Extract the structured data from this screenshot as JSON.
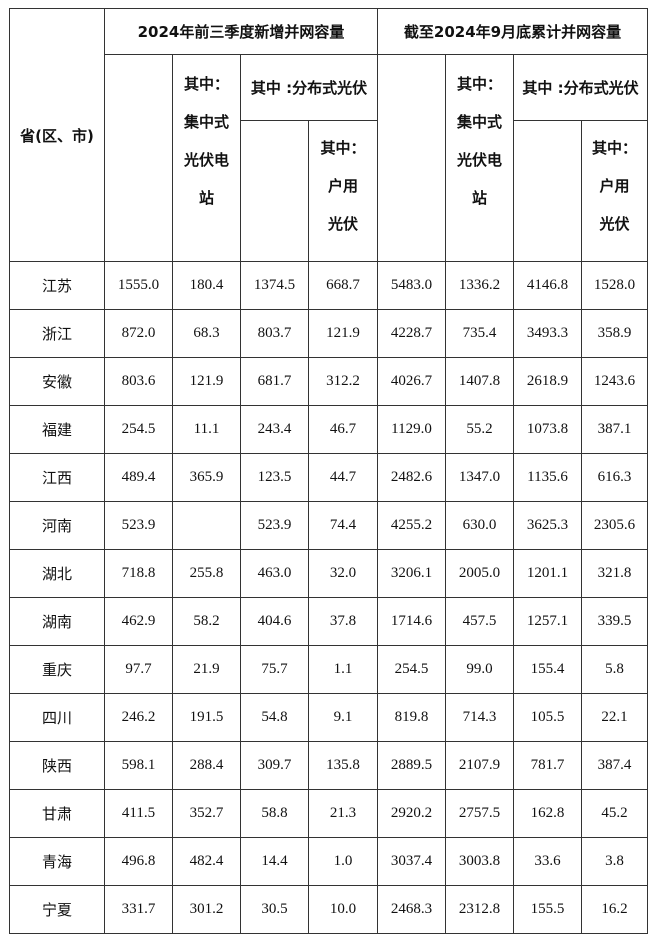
{
  "header": {
    "province": "省(区、市)",
    "group1": "2024年前三季度新增并网容量",
    "group2": "截至2024年9月底累计并网容量",
    "centralized": [
      "其中：",
      "集中式",
      "光伏电",
      "站"
    ],
    "distributed": "其中 :分布式光伏",
    "household": [
      "其中：",
      "户用",
      "光伏"
    ]
  },
  "rows": [
    {
      "province": "江苏",
      "v": [
        "1555.0",
        "180.4",
        "1374.5",
        "668.7",
        "5483.0",
        "1336.2",
        "4146.8",
        "1528.0"
      ]
    },
    {
      "province": "浙江",
      "v": [
        "872.0",
        "68.3",
        "803.7",
        "121.9",
        "4228.7",
        "735.4",
        "3493.3",
        "358.9"
      ]
    },
    {
      "province": "安徽",
      "v": [
        "803.6",
        "121.9",
        "681.7",
        "312.2",
        "4026.7",
        "1407.8",
        "2618.9",
        "1243.6"
      ]
    },
    {
      "province": "福建",
      "v": [
        "254.5",
        "11.1",
        "243.4",
        "46.7",
        "1129.0",
        "55.2",
        "1073.8",
        "387.1"
      ]
    },
    {
      "province": "江西",
      "v": [
        "489.4",
        "365.9",
        "123.5",
        "44.7",
        "2482.6",
        "1347.0",
        "1135.6",
        "616.3"
      ]
    },
    {
      "province": "河南",
      "v": [
        "523.9",
        "",
        "523.9",
        "74.4",
        "4255.2",
        "630.0",
        "3625.3",
        "2305.6"
      ]
    },
    {
      "province": "湖北",
      "v": [
        "718.8",
        "255.8",
        "463.0",
        "32.0",
        "3206.1",
        "2005.0",
        "1201.1",
        "321.8"
      ]
    },
    {
      "province": "湖南",
      "v": [
        "462.9",
        "58.2",
        "404.6",
        "37.8",
        "1714.6",
        "457.5",
        "1257.1",
        "339.5"
      ]
    },
    {
      "province": "重庆",
      "v": [
        "97.7",
        "21.9",
        "75.7",
        "1.1",
        "254.5",
        "99.0",
        "155.4",
        "5.8"
      ]
    },
    {
      "province": "四川",
      "v": [
        "246.2",
        "191.5",
        "54.8",
        "9.1",
        "819.8",
        "714.3",
        "105.5",
        "22.1"
      ]
    },
    {
      "province": "陕西",
      "v": [
        "598.1",
        "288.4",
        "309.7",
        "135.8",
        "2889.5",
        "2107.9",
        "781.7",
        "387.4"
      ]
    },
    {
      "province": "甘肃",
      "v": [
        "411.5",
        "352.7",
        "58.8",
        "21.3",
        "2920.2",
        "2757.5",
        "162.8",
        "45.2"
      ]
    },
    {
      "province": "青海",
      "v": [
        "496.8",
        "482.4",
        "14.4",
        "1.0",
        "3037.4",
        "3003.8",
        "33.6",
        "3.8"
      ]
    },
    {
      "province": "宁夏",
      "v": [
        "331.7",
        "301.2",
        "30.5",
        "10.0",
        "2468.3",
        "2312.8",
        "155.5",
        "16.2"
      ]
    }
  ]
}
